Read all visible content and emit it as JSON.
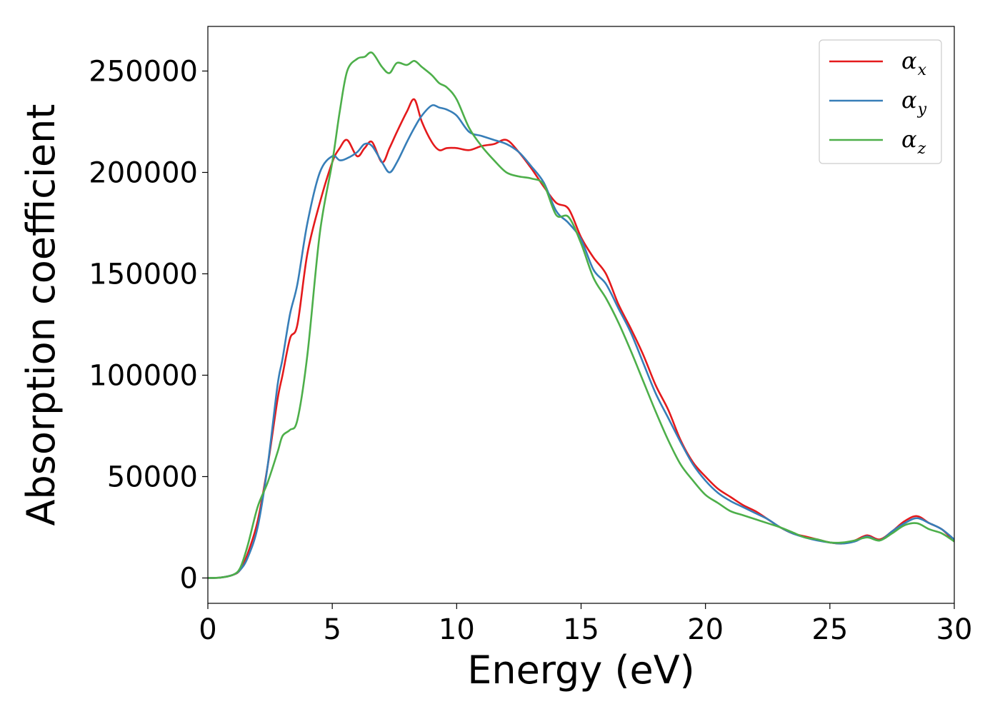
{
  "chart_data": {
    "type": "line",
    "title": "",
    "xlabel": "Energy (eV)",
    "ylabel": "Absorption coefficient",
    "xlim": [
      0,
      30
    ],
    "ylim": [
      -12500,
      272000
    ],
    "xticks": [
      0,
      5,
      10,
      15,
      20,
      25,
      30
    ],
    "xtick_labels": [
      "0",
      "5",
      "10",
      "15",
      "20",
      "25",
      "30"
    ],
    "yticks": [
      0,
      50000,
      100000,
      150000,
      200000,
      250000
    ],
    "ytick_labels": [
      "0",
      "50000",
      "100000",
      "150000",
      "200000",
      "250000"
    ],
    "grid": false,
    "legend_position": "top-right",
    "x": [
      0,
      0.5,
      1.0,
      1.3,
      1.6,
      2.0,
      2.4,
      2.8,
      3.0,
      3.3,
      3.6,
      4.0,
      4.5,
      5.0,
      5.3,
      5.6,
      6.0,
      6.3,
      6.6,
      7.0,
      7.3,
      7.6,
      8.0,
      8.3,
      8.6,
      9.0,
      9.3,
      9.6,
      10.0,
      10.5,
      11.0,
      11.5,
      12.0,
      12.5,
      13.0,
      13.5,
      14.0,
      14.5,
      15.0,
      15.5,
      16.0,
      16.5,
      17.0,
      17.5,
      18.0,
      18.5,
      19.0,
      19.5,
      20.0,
      20.5,
      21.0,
      21.5,
      22.0,
      22.5,
      23.0,
      23.5,
      24.0,
      24.5,
      25.0,
      25.5,
      26.0,
      26.5,
      27.0,
      27.5,
      28.0,
      28.5,
      29.0,
      29.5,
      30.0
    ],
    "series": [
      {
        "name": "α_x",
        "label_main": "α",
        "label_sub": "x",
        "color": "#e41a1c",
        "values": [
          0,
          200,
          1500,
          4000,
          12000,
          28000,
          55000,
          88000,
          100000,
          118000,
          125000,
          160000,
          185000,
          205000,
          212000,
          216000,
          208000,
          212000,
          215000,
          205000,
          212000,
          220000,
          230000,
          236000,
          225000,
          215000,
          211000,
          212000,
          212000,
          211000,
          213000,
          214000,
          216000,
          210000,
          202000,
          193000,
          185000,
          182000,
          168000,
          158000,
          150000,
          135000,
          123000,
          110000,
          95000,
          83000,
          68000,
          57000,
          50000,
          44000,
          40000,
          36000,
          33000,
          29000,
          25000,
          22000,
          20500,
          19000,
          17500,
          17000,
          18500,
          21000,
          19000,
          23000,
          28000,
          30500,
          27000,
          24000,
          18000
        ]
      },
      {
        "name": "α_y",
        "label_main": "α",
        "label_sub": "y",
        "color": "#377eb8",
        "values": [
          0,
          200,
          1500,
          4000,
          10000,
          25000,
          55000,
          95000,
          108000,
          130000,
          145000,
          175000,
          200000,
          208000,
          206000,
          207000,
          210000,
          214000,
          213000,
          205000,
          200000,
          205000,
          215000,
          222000,
          228000,
          233000,
          232000,
          231000,
          228000,
          220000,
          218000,
          216000,
          214000,
          210000,
          203000,
          195000,
          181000,
          175000,
          167000,
          152000,
          145000,
          133000,
          121000,
          106000,
          91000,
          79000,
          67000,
          56000,
          48000,
          42000,
          38000,
          35000,
          32000,
          29000,
          25000,
          22000,
          20000,
          18500,
          17500,
          17000,
          18000,
          20500,
          18500,
          23000,
          27000,
          29500,
          27000,
          24000,
          19000
        ]
      },
      {
        "name": "α_z",
        "label_main": "α",
        "label_sub": "z",
        "color": "#4daf4a",
        "values": [
          0,
          200,
          1500,
          5000,
          16000,
          35000,
          47000,
          62000,
          70000,
          73000,
          78000,
          110000,
          170000,
          205000,
          230000,
          250000,
          256000,
          257000,
          259000,
          252000,
          249000,
          254000,
          253000,
          255000,
          252000,
          248000,
          244000,
          242000,
          236000,
          222000,
          213000,
          206000,
          200000,
          198000,
          197000,
          194000,
          179000,
          178000,
          165000,
          148000,
          138000,
          126000,
          112000,
          97000,
          82000,
          68000,
          56000,
          48000,
          41000,
          37000,
          33000,
          31000,
          29000,
          27000,
          25000,
          22500,
          20000,
          19000,
          17500,
          17500,
          18500,
          20000,
          18500,
          22000,
          26000,
          27000,
          24000,
          22000,
          18000
        ]
      }
    ]
  }
}
